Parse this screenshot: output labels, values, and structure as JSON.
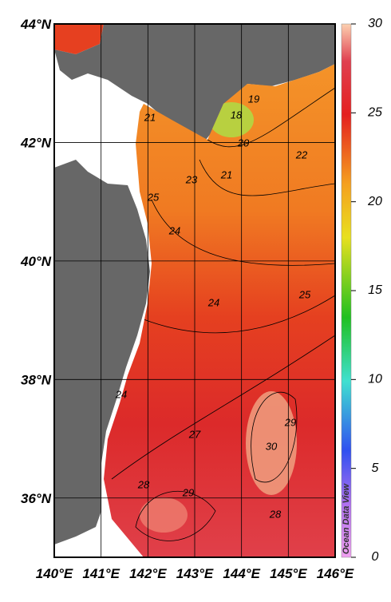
{
  "map": {
    "lat_range": [
      35,
      44
    ],
    "lon_range": [
      140,
      146
    ],
    "lat_ticks": [
      {
        "value": 36,
        "label": "36°N"
      },
      {
        "value": 38,
        "label": "38°N"
      },
      {
        "value": 40,
        "label": "40°N"
      },
      {
        "value": 42,
        "label": "42°N"
      },
      {
        "value": 44,
        "label": "44°N"
      }
    ],
    "lon_ticks": [
      {
        "value": 140,
        "label": "140°E"
      },
      {
        "value": 141,
        "label": "141°E"
      },
      {
        "value": 142,
        "label": "142°E"
      },
      {
        "value": 143,
        "label": "143°E"
      },
      {
        "value": 144,
        "label": "144°E"
      },
      {
        "value": 145,
        "label": "145°E"
      },
      {
        "value": 146,
        "label": "146°E"
      }
    ],
    "contour_labels": [
      19,
      18,
      20,
      21,
      22,
      21,
      23,
      25,
      24,
      24,
      25,
      24,
      27,
      30,
      29,
      28,
      29,
      28
    ],
    "colorbar": {
      "lim": [
        0,
        30
      ],
      "ticks": [
        0,
        5,
        10,
        15,
        20,
        25,
        30
      ]
    },
    "watermark": "Ocean Data View"
  }
}
